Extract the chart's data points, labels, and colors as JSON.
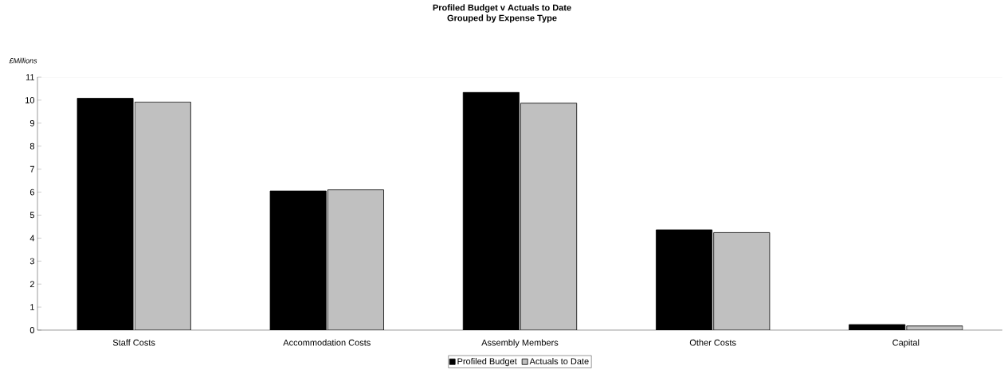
{
  "chart_data": {
    "type": "bar",
    "title": "Profiled Budget v Actuals to Date",
    "subtitle": "Grouped by Expense Type",
    "ylabel": "£Millions",
    "categories": [
      "Staff Costs",
      "Accommodation Costs",
      "Assembly Members",
      "Other Costs",
      "Capital"
    ],
    "series": [
      {
        "name": "Profiled Budget",
        "color": "#000000",
        "values": [
          10.08,
          6.05,
          10.34,
          4.36,
          0.24
        ]
      },
      {
        "name": "Actuals to Date",
        "color": "#c0c0c0",
        "values": [
          9.92,
          6.1,
          9.87,
          4.24,
          0.18
        ]
      }
    ],
    "ylim": [
      0,
      11
    ],
    "yticks": [
      0,
      1,
      2,
      3,
      4,
      5,
      6,
      7,
      8,
      9,
      10,
      11
    ],
    "grid": false,
    "legend": "bottom"
  }
}
